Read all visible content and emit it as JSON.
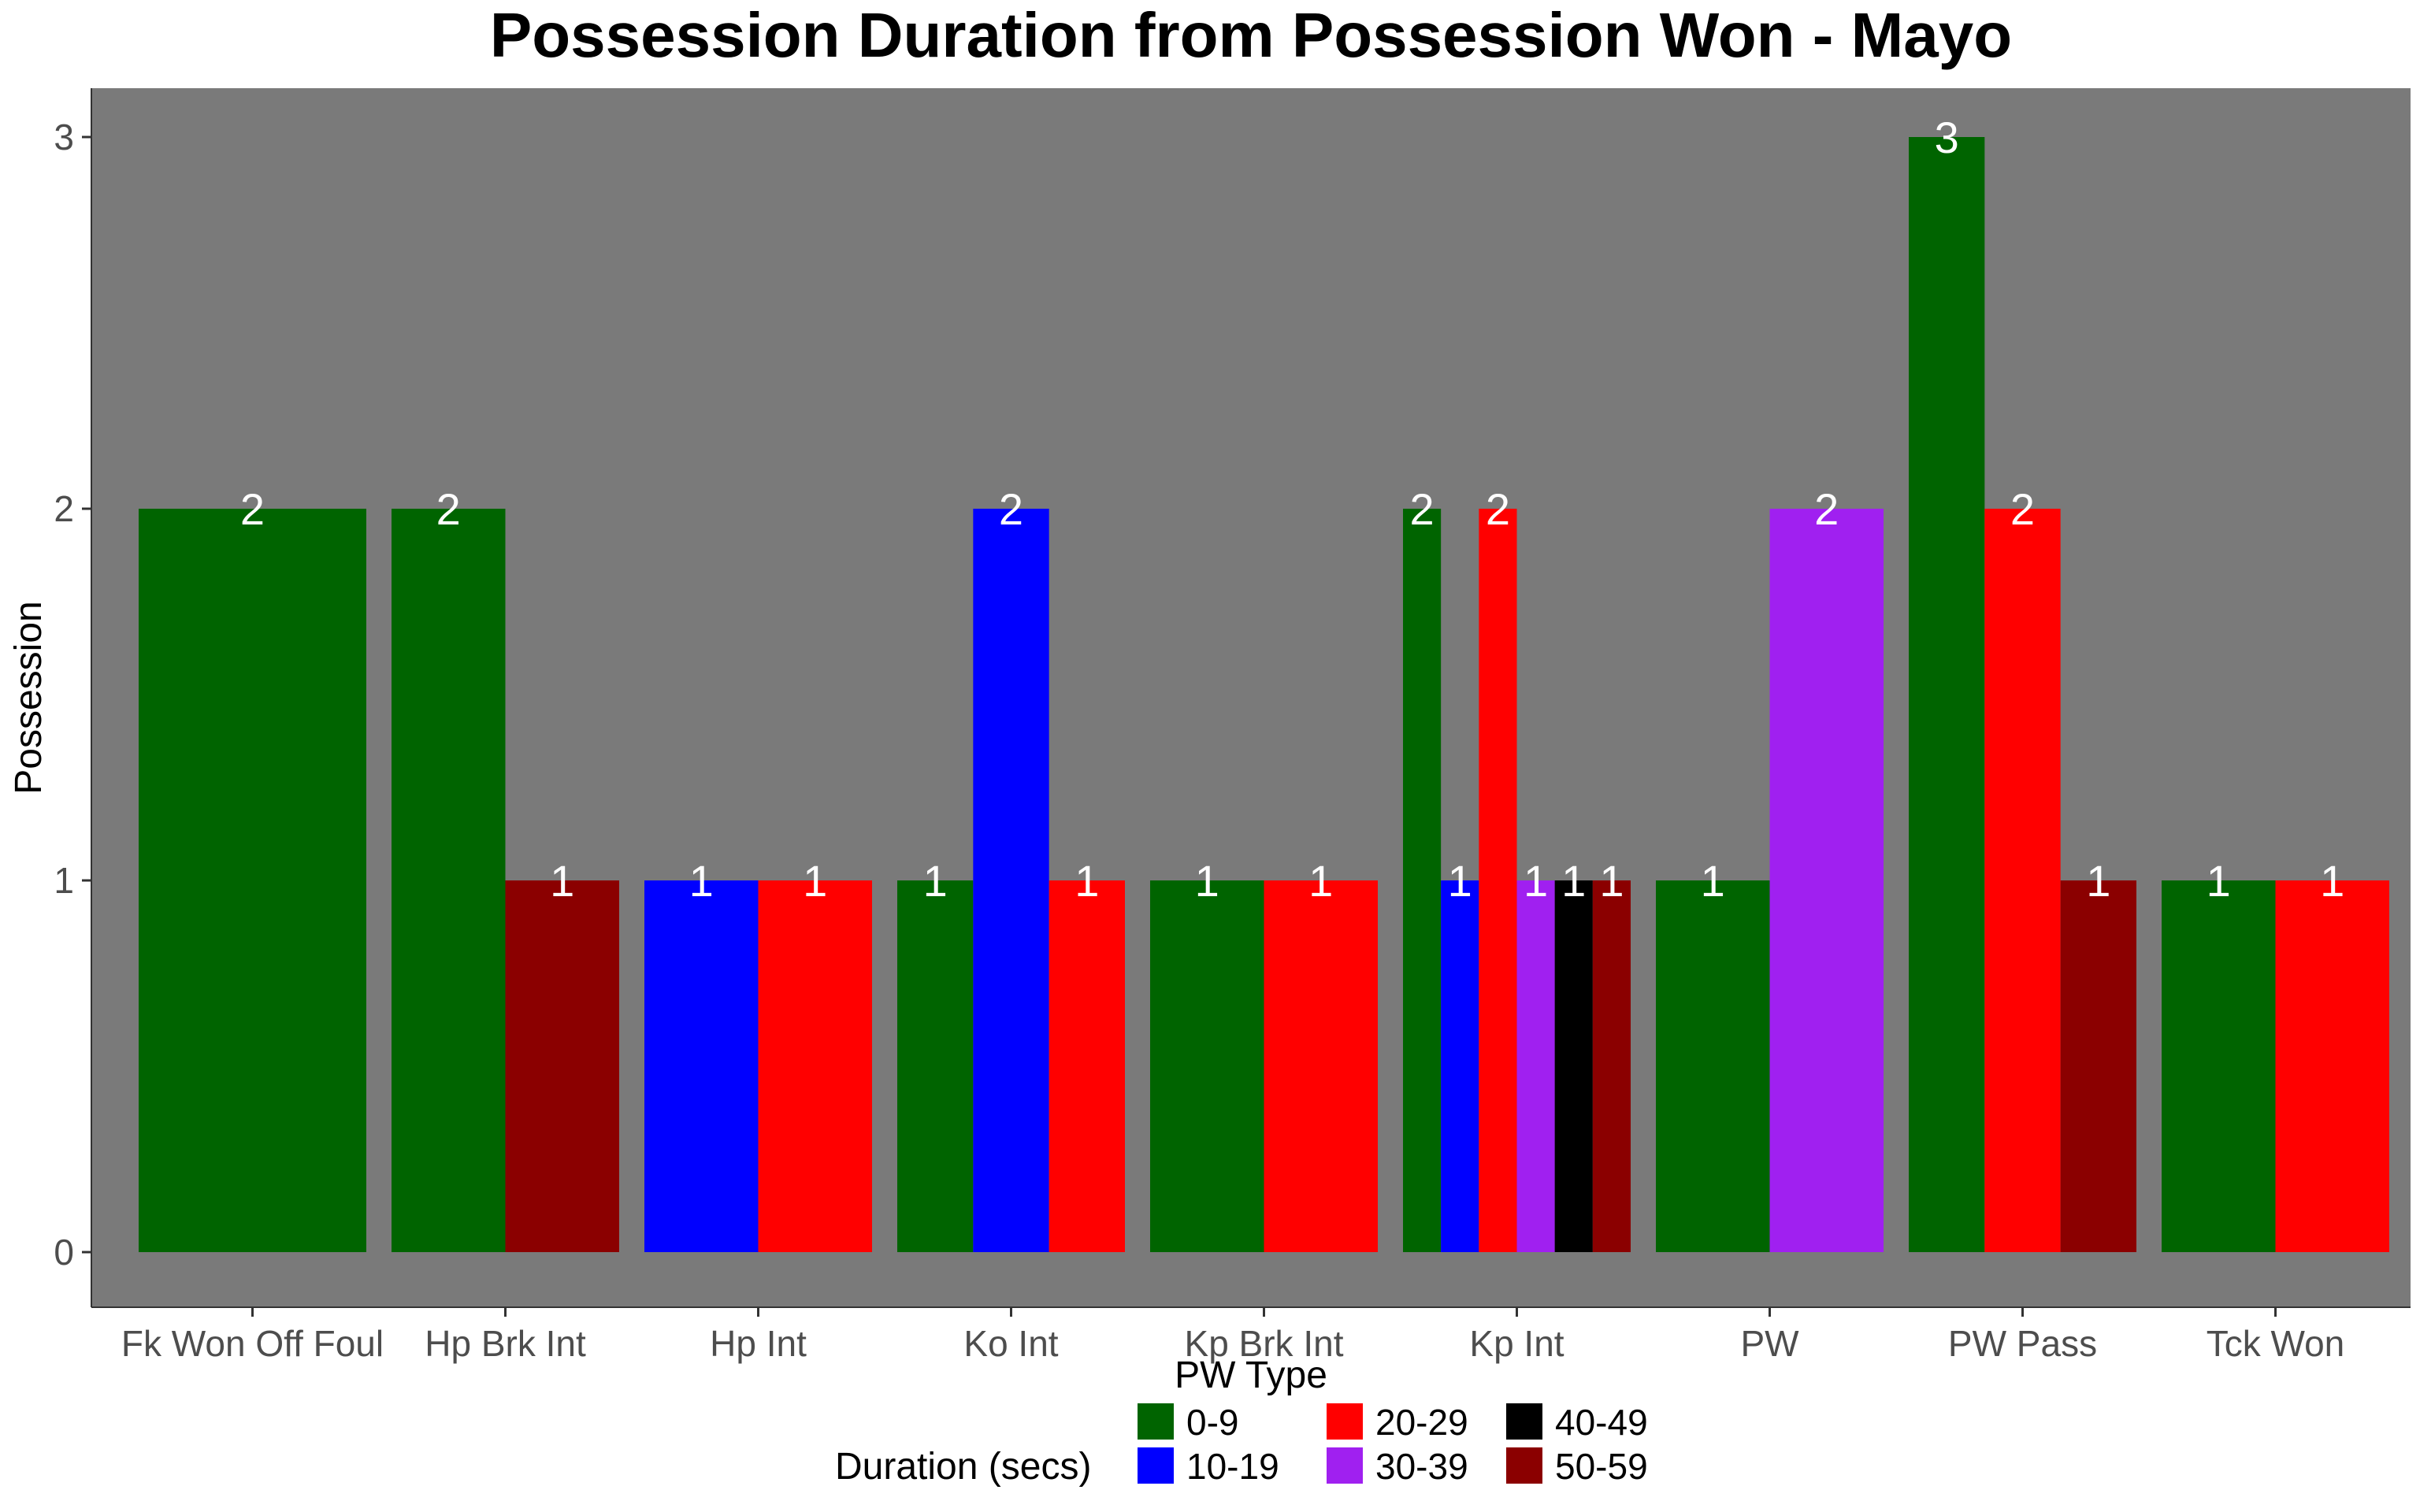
{
  "chart_data": {
    "type": "bar",
    "title": "Possession Duration from Possession Won - Mayo",
    "xlabel": "PW Type",
    "ylabel": "Possession",
    "ylim": [
      0,
      3
    ],
    "yticks": [
      "0",
      "1",
      "2",
      "3"
    ],
    "grid": false,
    "legend_position": "bottom",
    "legend_title": "Duration (secs)",
    "series": [
      {
        "name": "0-9",
        "color": "#006400"
      },
      {
        "name": "10-19",
        "color": "#0000ff"
      },
      {
        "name": "20-29",
        "color": "#ff0000"
      },
      {
        "name": "30-39",
        "color": "#a020f0"
      },
      {
        "name": "40-49",
        "color": "#000000"
      },
      {
        "name": "50-59",
        "color": "#8b0000"
      }
    ],
    "categories": [
      {
        "label": "Fk Won Off Foul",
        "bars": [
          {
            "series": "0-9",
            "value": 2
          }
        ]
      },
      {
        "label": "Hp Brk Int",
        "bars": [
          {
            "series": "0-9",
            "value": 2
          },
          {
            "series": "50-59",
            "value": 1
          }
        ]
      },
      {
        "label": "Hp Int",
        "bars": [
          {
            "series": "10-19",
            "value": 1
          },
          {
            "series": "20-29",
            "value": 1
          }
        ]
      },
      {
        "label": "Ko Int",
        "bars": [
          {
            "series": "0-9",
            "value": 1
          },
          {
            "series": "10-19",
            "value": 2
          },
          {
            "series": "20-29",
            "value": 1
          }
        ]
      },
      {
        "label": "Kp Brk Int",
        "bars": [
          {
            "series": "0-9",
            "value": 1
          },
          {
            "series": "20-29",
            "value": 1
          }
        ]
      },
      {
        "label": "Kp Int",
        "bars": [
          {
            "series": "0-9",
            "value": 2
          },
          {
            "series": "10-19",
            "value": 1
          },
          {
            "series": "20-29",
            "value": 2
          },
          {
            "series": "30-39",
            "value": 1
          },
          {
            "series": "40-49",
            "value": 1
          },
          {
            "series": "50-59",
            "value": 1
          }
        ]
      },
      {
        "label": "PW",
        "bars": [
          {
            "series": "0-9",
            "value": 1
          },
          {
            "series": "30-39",
            "value": 2
          }
        ]
      },
      {
        "label": "PW Pass",
        "bars": [
          {
            "series": "0-9",
            "value": 3
          },
          {
            "series": "20-29",
            "value": 2
          },
          {
            "series": "50-59",
            "value": 1
          }
        ]
      },
      {
        "label": "Tck Won",
        "bars": [
          {
            "series": "0-9",
            "value": 1
          },
          {
            "series": "20-29",
            "value": 1
          }
        ]
      }
    ]
  }
}
